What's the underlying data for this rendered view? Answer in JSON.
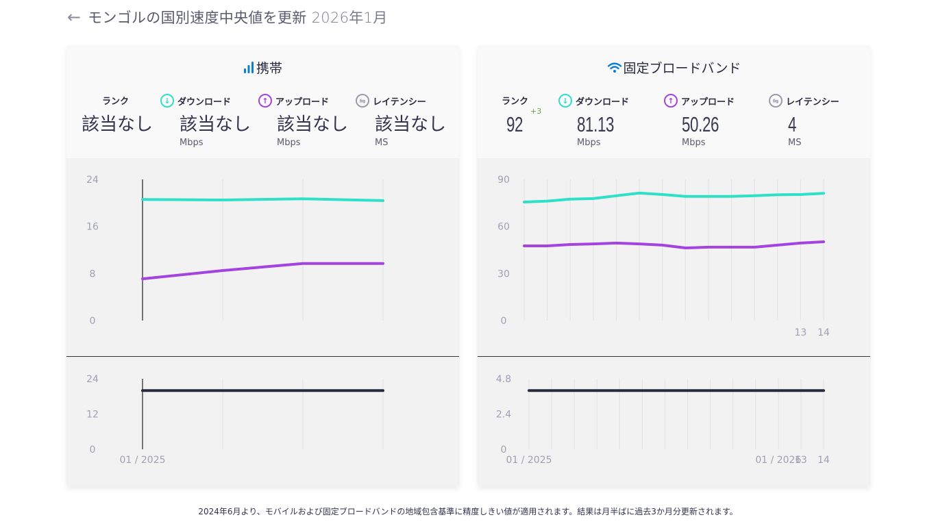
{
  "header": {
    "back_icon": "arrow-left-icon",
    "title": "モンゴルの国別速度中央値を更新",
    "date": "2026年1月"
  },
  "colors": {
    "download": "#2fe0c8",
    "upload": "#a444e0",
    "latency": "#272b3e",
    "accent_blue": "#0a7fd1",
    "rank_up": "#6aa04a"
  },
  "mobile": {
    "title": "携帯",
    "icon": "signal-bars-icon",
    "labels": {
      "rank": "ランク",
      "download": "ダウンロード",
      "upload": "アップロード",
      "latency": "レイテンシー"
    },
    "values": {
      "rank": "該当なし",
      "download": "該当なし",
      "upload": "該当なし",
      "latency": "該当なし"
    },
    "units": {
      "download": "Mbps",
      "upload": "Mbps",
      "latency": "MS"
    }
  },
  "fixed": {
    "title": "固定ブロードバンド",
    "icon": "wifi-icon",
    "labels": {
      "rank": "ランク",
      "download": "ダウンロード",
      "upload": "アップロード",
      "latency": "レイテンシー"
    },
    "values": {
      "rank": "92",
      "rank_change": "+3",
      "download": "81.13",
      "upload": "50.26",
      "latency": "4"
    },
    "units": {
      "download": "Mbps",
      "upload": "Mbps",
      "latency": "MS"
    }
  },
  "footnote": "2024年6月より、モバイルおよび固定ブロードバンドの地域包含基準に精度しきい値が適用されます。結果は月半ばに過去3か月分更新されます。",
  "chart_data": [
    {
      "id": "mobile-speed",
      "type": "line",
      "title": "携帯 speed",
      "points": 4,
      "ylim": [
        0,
        24
      ],
      "yticks": [
        "0",
        "8",
        "16",
        "24"
      ],
      "xtick_labels": [],
      "grid": true,
      "highlight_index": 0,
      "series": [
        {
          "name": "ダウンロード",
          "color": "#2fe0c8",
          "values": [
            20.6,
            20.5,
            20.7,
            20.4
          ]
        },
        {
          "name": "アップロード",
          "color": "#a444e0",
          "values": [
            7.1,
            8.5,
            9.7,
            9.7
          ]
        }
      ]
    },
    {
      "id": "mobile-latency",
      "type": "line",
      "title": "携帯 latency",
      "points": 4,
      "ylim": [
        0,
        24
      ],
      "yticks": [
        "0",
        "12",
        "24"
      ],
      "xtick_labels": [
        {
          "index": 0,
          "label": "01 / 2025"
        }
      ],
      "grid": true,
      "highlight_index": 0,
      "series": [
        {
          "name": "レイテンシー",
          "color": "#272b3e",
          "values": [
            20,
            20,
            20,
            20
          ]
        }
      ]
    },
    {
      "id": "fixed-speed",
      "type": "line",
      "title": "固定ブロードバンド speed",
      "points": 14,
      "ylim": [
        0,
        90
      ],
      "yticks": [
        "0",
        "30",
        "60",
        "90"
      ],
      "xtick_labels": [
        {
          "index": 12,
          "label": "13"
        },
        {
          "index": 13,
          "label": "14"
        }
      ],
      "grid": true,
      "highlight_index": null,
      "series": [
        {
          "name": "ダウンロード",
          "color": "#2fe0c8",
          "values": [
            75.6,
            76.2,
            77.4,
            77.8,
            79.6,
            81.3,
            80.4,
            79.2,
            79.2,
            79.2,
            79.6,
            80.2,
            80.4,
            81.13
          ]
        },
        {
          "name": "アップロード",
          "color": "#a444e0",
          "values": [
            47.6,
            47.6,
            48.5,
            48.9,
            49.4,
            48.9,
            48.1,
            46.3,
            46.8,
            46.8,
            46.8,
            48.1,
            49.4,
            50.26
          ]
        }
      ]
    },
    {
      "id": "fixed-latency",
      "type": "line",
      "title": "固定ブロードバンド latency",
      "points": 14,
      "ylim": [
        0,
        4.8
      ],
      "yticks": [
        "0",
        "2.4",
        "4.8"
      ],
      "xtick_labels": [
        {
          "index": 0,
          "label": "01 / 2025"
        },
        {
          "index": 11,
          "label": "01 / 2026"
        },
        {
          "index": 12,
          "label": "13"
        },
        {
          "index": 13,
          "label": "14"
        }
      ],
      "grid": true,
      "highlight_index": null,
      "series": [
        {
          "name": "レイテンシー",
          "color": "#272b3e",
          "values": [
            4,
            4,
            4,
            4,
            4,
            4,
            4,
            4,
            4,
            4,
            4,
            4,
            4,
            4
          ]
        }
      ]
    }
  ]
}
